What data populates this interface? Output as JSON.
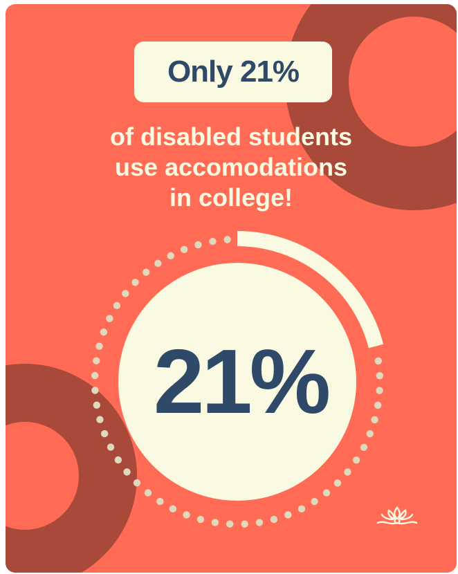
{
  "headline": {
    "label": "Only 21%"
  },
  "subtitle": {
    "lines": [
      "of disabled students",
      "use accomodations",
      "in college!"
    ]
  },
  "stat": {
    "label": "21%",
    "fraction": 0.21
  },
  "icons": {
    "logo": "lotus-logo-icon"
  },
  "colors": {
    "background": "#FF6B55",
    "ring_dark": "#A8493A",
    "cream": "#FAF9E1",
    "dots": "#E1D9BD",
    "navy": "#2F4A68"
  }
}
